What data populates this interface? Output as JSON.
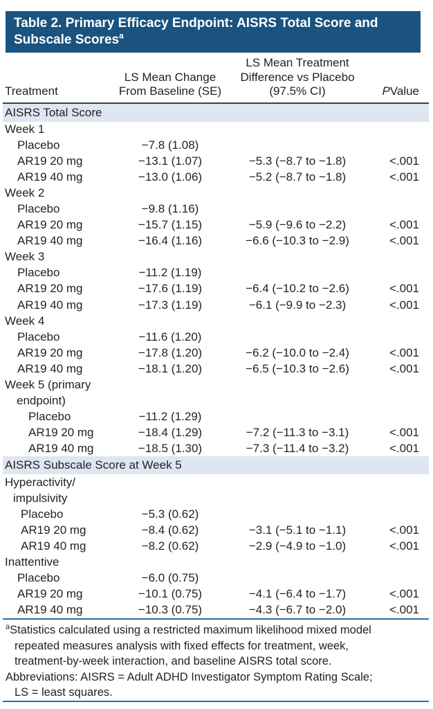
{
  "colors": {
    "header_band_bg": "#1a537f",
    "section_band_bg": "#e0e5f2",
    "rule_dark": "#3a3f46",
    "rule_blue": "#2d6da8",
    "text": "#231f20",
    "title_text": "#ffffff"
  },
  "title": {
    "line1": "Table 2. Primary Efficacy Endpoint: AISRS Total Score and",
    "line2": "Subscale Scores",
    "superscript": "a"
  },
  "columns": {
    "treatment": "Treatment",
    "change_line1": "LS Mean Change",
    "change_line2": "From Baseline (SE)",
    "diff_line1": "LS Mean Treatment",
    "diff_line2": "Difference vs Placebo",
    "diff_line3": "(97.5% CI)",
    "pvalue_italic": "P",
    "pvalue_rest": " Value"
  },
  "sections": [
    {
      "band": "AISRS Total Score",
      "rows": [
        {
          "label": "Week 1",
          "indent": 3,
          "change": "",
          "diff": "",
          "p": ""
        },
        {
          "label": "Placebo",
          "indent": 21,
          "change": "−7.8 (1.08)",
          "diff": "",
          "p": ""
        },
        {
          "label": "AR19 20 mg",
          "indent": 21,
          "change": "−13.1 (1.07)",
          "diff": "−5.3 (−8.7 to −1.8)",
          "p": "<.001"
        },
        {
          "label": "AR19 40 mg",
          "indent": 21,
          "change": "−13.0 (1.06)",
          "diff": "−5.2 (−8.7 to −1.8)",
          "p": "<.001"
        },
        {
          "label": "Week 2",
          "indent": 3,
          "change": "",
          "diff": "",
          "p": ""
        },
        {
          "label": "Placebo",
          "indent": 21,
          "change": "−9.8 (1.16)",
          "diff": "",
          "p": ""
        },
        {
          "label": "AR19 20 mg",
          "indent": 21,
          "change": "−15.7 (1.15)",
          "diff": "−5.9 (−9.6 to −2.2)",
          "p": "<.001"
        },
        {
          "label": "AR19 40 mg",
          "indent": 21,
          "change": "−16.4 (1.16)",
          "diff": "−6.6 (−10.3 to −2.9)",
          "p": "<.001"
        },
        {
          "label": "Week 3",
          "indent": 3,
          "change": "",
          "diff": "",
          "p": ""
        },
        {
          "label": "Placebo",
          "indent": 21,
          "change": "−11.2 (1.19)",
          "diff": "",
          "p": ""
        },
        {
          "label": "AR19 20 mg",
          "indent": 21,
          "change": "−17.6 (1.19)",
          "diff": "−6.4 (−10.2 to −2.6)",
          "p": "<.001"
        },
        {
          "label": "AR19 40 mg",
          "indent": 21,
          "change": "−17.3 (1.19)",
          "diff": "−6.1 (−9.9 to −2.3)",
          "p": "<.001"
        },
        {
          "label": "Week 4",
          "indent": 3,
          "change": "",
          "diff": "",
          "p": ""
        },
        {
          "label": "Placebo",
          "indent": 21,
          "change": "−11.6 (1.20)",
          "diff": "",
          "p": ""
        },
        {
          "label": "AR19 20 mg",
          "indent": 21,
          "change": "−17.8 (1.20)",
          "diff": "−6.2 (−10.0 to −2.4)",
          "p": "<.001"
        },
        {
          "label": "AR19 40 mg",
          "indent": 21,
          "change": "−18.1 (1.20)",
          "diff": "−6.5 (−10.3 to −2.6)",
          "p": "<.001"
        },
        {
          "label": "Week 5 (primary",
          "indent": 3,
          "change": "",
          "diff": "",
          "p": ""
        },
        {
          "label": "endpoint)",
          "indent": 20,
          "change": "",
          "diff": "",
          "p": ""
        },
        {
          "label": "Placebo",
          "indent": 37,
          "change": "−11.2 (1.29)",
          "diff": "",
          "p": ""
        },
        {
          "label": "AR19 20 mg",
          "indent": 37,
          "change": "−18.4 (1.29)",
          "diff": "−7.2 (−11.3 to −3.1)",
          "p": "<.001"
        },
        {
          "label": "AR19 40 mg",
          "indent": 37,
          "change": "−18.5 (1.30)",
          "diff": "−7.3 (−11.4 to −3.2)",
          "p": "<.001"
        }
      ]
    },
    {
      "band": "AISRS Subscale Score at Week 5",
      "rows": [
        {
          "label": "Hyperactivity/",
          "indent": 3,
          "change": "",
          "diff": "",
          "p": ""
        },
        {
          "label": "impulsivity",
          "indent": 15,
          "change": "",
          "diff": "",
          "p": ""
        },
        {
          "label": "Placebo",
          "indent": 26,
          "change": "−5.3 (0.62)",
          "diff": "",
          "p": ""
        },
        {
          "label": "AR19 20 mg",
          "indent": 26,
          "change": "−8.4 (0.62)",
          "diff": "−3.1 (−5.1 to −1.1)",
          "p": "<.001"
        },
        {
          "label": "AR19 40 mg",
          "indent": 26,
          "change": "−8.2 (0.62)",
          "diff": "−2.9 (−4.9 to −1.0)",
          "p": "<.001"
        },
        {
          "label": "Inattentive",
          "indent": 3,
          "change": "",
          "diff": "",
          "p": ""
        },
        {
          "label": "Placebo",
          "indent": 21,
          "change": "−6.0 (0.75)",
          "diff": "",
          "p": ""
        },
        {
          "label": "AR19 20 mg",
          "indent": 21,
          "change": "−10.1 (0.75)",
          "diff": "−4.1 (−6.4 to −1.7)",
          "p": "<.001"
        },
        {
          "label": "AR19 40 mg",
          "indent": 21,
          "change": "−10.3 (0.75)",
          "diff": "−4.3 (−6.7 to −2.0)",
          "p": "<.001"
        }
      ]
    }
  ],
  "footnotes": {
    "a_sup": "a",
    "a_lines": [
      "Statistics calculated using a restricted maximum likelihood mixed model",
      "repeated measures analysis with fixed effects for treatment, week,",
      "treatment-by-week interaction, and baseline AISRS total score."
    ],
    "abbrev_lines": [
      "Abbreviations: AISRS = Adult ADHD Investigator Symptom Rating Scale;",
      "LS = least squares."
    ]
  }
}
